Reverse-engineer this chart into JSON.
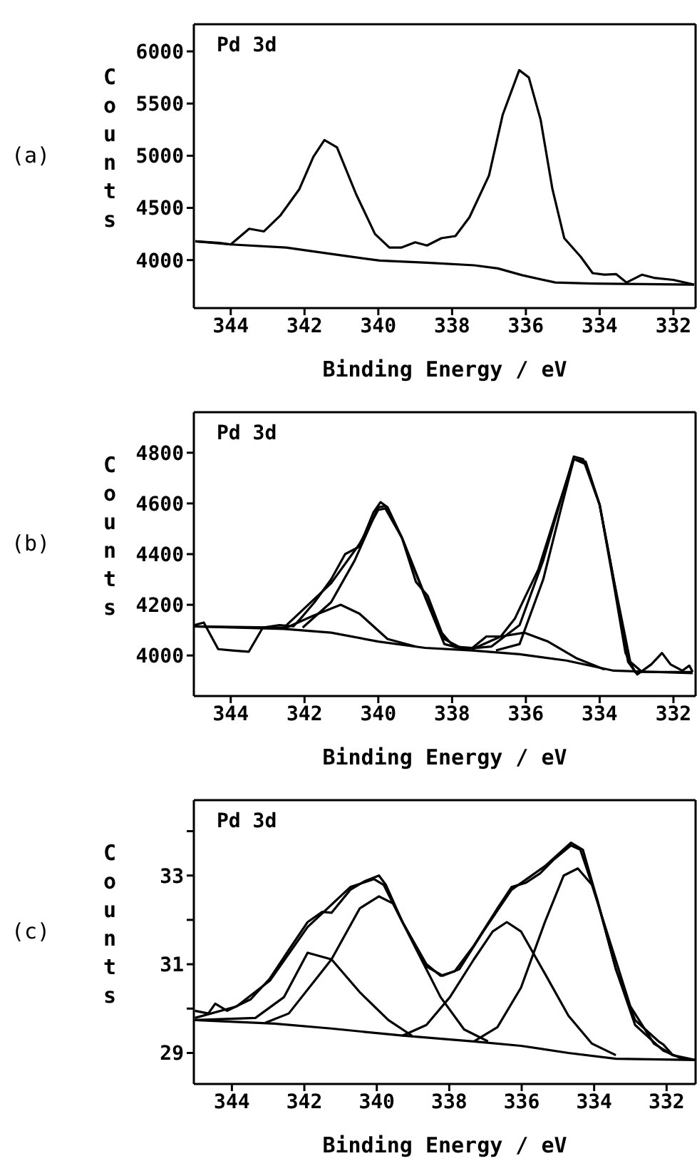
{
  "chart_data": [
    {
      "type": "line",
      "annotations": [
        "(a)",
        "Pd 3d"
      ],
      "xlabel": "Binding Energy / eV",
      "ylabel": "Counts",
      "xlim": [
        345,
        331.4
      ],
      "ylim": [
        3540,
        6260
      ],
      "xticks": [
        344,
        342,
        340,
        338,
        336,
        334,
        332
      ],
      "yticks": [
        4000,
        4500,
        5000,
        5500,
        6000
      ],
      "series": [
        {
          "color": "#000000",
          "x": [
            344.96,
            344.3,
            344.0,
            343.5,
            343.1,
            342.65,
            342.14,
            341.76,
            341.46,
            341.12,
            340.6,
            340.09,
            339.7,
            339.38,
            339.0,
            338.68,
            338.29,
            337.91,
            337.53,
            337.0,
            336.63,
            336.18,
            335.92,
            335.6,
            335.28,
            334.96,
            334.51,
            334.19,
            333.87,
            333.55,
            333.27,
            332.85,
            332.53,
            332.0,
            331.44
          ],
          "values": [
            4180,
            4165,
            4150,
            4300,
            4275,
            4430,
            4680,
            4990,
            5150,
            5080,
            4630,
            4250,
            4120,
            4120,
            4170,
            4140,
            4210,
            4230,
            4410,
            4810,
            5390,
            5820,
            5750,
            5345,
            4680,
            4210,
            4030,
            3875,
            3860,
            3865,
            3785,
            3860,
            3830,
            3810,
            3765
          ]
        },
        {
          "color": "#000000",
          "x": [
            344.96,
            344.0,
            342.5,
            341.2,
            339.96,
            338.68,
            337.4,
            336.76,
            336.1,
            335.2,
            334.2,
            331.44
          ],
          "values": [
            4180,
            4150,
            4120,
            4055,
            3995,
            3975,
            3950,
            3920,
            3855,
            3785,
            3775,
            3765
          ]
        }
      ]
    },
    {
      "type": "line",
      "annotations": [
        "(b)",
        "Pd 3d"
      ],
      "xlabel": "Binding Energy / eV",
      "ylabel": "Counts",
      "xlim": [
        345,
        331.4
      ],
      "ylim": [
        3840,
        4960
      ],
      "xticks": [
        344,
        342,
        340,
        338,
        336,
        334,
        332
      ],
      "yticks": [
        4000,
        4200,
        4400,
        4600,
        4800
      ],
      "series": [
        {
          "color": "#000000",
          "x": [
            344.98,
            344.73,
            344.34,
            343.96,
            343.51,
            343.13,
            342.68,
            342.3,
            342.05,
            341.73,
            341.28,
            340.9,
            340.51,
            340.13,
            339.94,
            339.75,
            339.36,
            338.98,
            338.66,
            338.28,
            337.96,
            337.45,
            337.07,
            336.68,
            336.3,
            336.04,
            335.66,
            335.15,
            334.7,
            334.38,
            334.0,
            333.62,
            333.23,
            332.98,
            332.6,
            332.31,
            332.08,
            331.76,
            331.57,
            331.48
          ],
          "values": [
            4120,
            4130,
            4025,
            4020,
            4015,
            4110,
            4120,
            4115,
            4155,
            4210,
            4300,
            4400,
            4430,
            4565,
            4605,
            4585,
            4465,
            4290,
            4235,
            4090,
            4035,
            4030,
            4075,
            4075,
            4145,
            4225,
            4340,
            4575,
            4775,
            4755,
            4595,
            4300,
            3975,
            3925,
            3965,
            4010,
            3965,
            3940,
            3960,
            3935
          ]
        },
        {
          "color": "#000000",
          "x": [
            344.98,
            342.56,
            341.28,
            340.51,
            340.0,
            339.81,
            339.36,
            338.73,
            338.21,
            337.7,
            336.94,
            336.17,
            335.53,
            335.02,
            334.7,
            334.45,
            334.0,
            333.62,
            333.3,
            333.04,
            331.48
          ],
          "values": [
            4115,
            4110,
            4285,
            4440,
            4575,
            4580,
            4465,
            4235,
            4065,
            4025,
            4035,
            4120,
            4375,
            4630,
            4785,
            4775,
            4595,
            4285,
            4010,
            3935,
            3935
          ]
        },
        {
          "color": "#000000",
          "x": [
            344.98,
            342.56,
            341.28,
            340.0,
            338.73,
            337.45,
            336.17,
            334.9,
            333.62,
            331.48
          ],
          "values": [
            4115,
            4105,
            4090,
            4055,
            4030,
            4020,
            4005,
            3980,
            3940,
            3930
          ]
        },
        {
          "color": "#000000",
          "x": [
            342.56,
            341.79,
            341.02,
            340.51,
            339.75,
            338.98
          ],
          "values": [
            4105,
            4155,
            4200,
            4165,
            4065,
            4035
          ]
        },
        {
          "color": "#000000",
          "x": [
            342.05,
            341.28,
            340.64,
            340.0,
            339.81,
            339.36,
            338.73,
            338.21,
            337.7
          ],
          "values": [
            4110,
            4210,
            4375,
            4585,
            4590,
            4465,
            4230,
            4045,
            4025
          ]
        },
        {
          "color": "#000000",
          "x": [
            337.45,
            336.68,
            336.04,
            335.4,
            334.64,
            333.87
          ],
          "values": [
            4025,
            4075,
            4090,
            4055,
            3990,
            3945
          ]
        },
        {
          "color": "#000000",
          "x": [
            336.81,
            336.17,
            335.53,
            335.02,
            334.7,
            334.38,
            334.0,
            333.62,
            333.17,
            332.85
          ],
          "values": [
            4020,
            4045,
            4300,
            4595,
            4775,
            4765,
            4595,
            4300,
            3975,
            3935
          ]
        }
      ]
    },
    {
      "type": "line",
      "annotations": [
        "(c)",
        "Pd 3d"
      ],
      "xlabel": "Binding Energy / eV",
      "ylabel": "Counts",
      "xlim": [
        345.05,
        331.2
      ],
      "ylim": [
        28.3,
        34.7
      ],
      "xticks": [
        344,
        342,
        340,
        338,
        336,
        334,
        332
      ],
      "yticks": [
        29,
        {
          "value": 30,
          "label": null
        },
        31,
        {
          "value": 32,
          "label": null
        },
        33,
        {
          "value": 34,
          "label": null
        }
      ],
      "series": [
        {
          "color": "#000000",
          "x": [
            345.02,
            344.65,
            344.46,
            344.13,
            343.48,
            342.95,
            342.43,
            341.91,
            341.51,
            341.25,
            340.73,
            340.34,
            339.94,
            339.75,
            339.29,
            338.63,
            338.24,
            337.85,
            337.32,
            336.67,
            336.28,
            335.88,
            335.49,
            335.1,
            334.64,
            334.38,
            333.92,
            333.4,
            332.87,
            332.22,
            332.09,
            331.83,
            331.21
          ],
          "values": [
            29.95,
            29.89,
            30.11,
            29.95,
            30.21,
            30.68,
            31.32,
            31.95,
            32.18,
            32.16,
            32.68,
            32.87,
            33.0,
            32.79,
            31.95,
            31.0,
            30.74,
            30.84,
            31.42,
            32.26,
            32.74,
            32.84,
            33.05,
            33.37,
            33.68,
            33.58,
            32.47,
            30.89,
            29.74,
            29.26,
            29.19,
            28.95,
            28.84
          ]
        },
        {
          "color": "#000000",
          "x": [
            345.02,
            343.87,
            342.95,
            341.91,
            340.73,
            340.08,
            339.81,
            339.29,
            338.63,
            338.18,
            337.72,
            337.06,
            336.28,
            335.36,
            334.64,
            334.31,
            333.92,
            333.4,
            332.87,
            332.09,
            331.57,
            331.21
          ],
          "values": [
            29.79,
            30.05,
            30.63,
            31.84,
            32.74,
            32.92,
            32.79,
            31.95,
            30.95,
            30.74,
            30.89,
            31.74,
            32.68,
            33.21,
            33.74,
            33.58,
            32.47,
            30.89,
            29.63,
            29.05,
            28.87,
            28.84
          ]
        },
        {
          "color": "#000000",
          "x": [
            345.02,
            342.82,
            341.25,
            339.29,
            337.32,
            336.02,
            334.71,
            333.4,
            331.21
          ],
          "values": [
            29.74,
            29.66,
            29.55,
            29.39,
            29.26,
            29.16,
            29.0,
            28.87,
            28.84
          ]
        },
        {
          "color": "#000000",
          "x": [
            345.02,
            343.35,
            342.56,
            341.91,
            341.25,
            340.47,
            339.68,
            339.03
          ],
          "values": [
            29.74,
            29.79,
            30.26,
            31.26,
            31.11,
            30.37,
            29.74,
            29.39
          ]
        },
        {
          "color": "#000000",
          "x": [
            343.08,
            342.43,
            341.25,
            340.47,
            339.94,
            339.55,
            338.9,
            338.24,
            337.59,
            336.93
          ],
          "values": [
            29.68,
            29.89,
            31.11,
            32.26,
            32.53,
            32.37,
            31.32,
            30.26,
            29.53,
            29.26
          ]
        },
        {
          "color": "#000000",
          "x": [
            339.29,
            338.63,
            337.98,
            337.32,
            336.8,
            336.41,
            336.02,
            335.36,
            334.71,
            334.06,
            333.4
          ],
          "values": [
            29.39,
            29.63,
            30.26,
            31.11,
            31.74,
            31.95,
            31.74,
            30.79,
            29.84,
            29.21,
            28.95
          ]
        },
        {
          "color": "#000000",
          "x": [
            337.32,
            336.67,
            336.02,
            335.36,
            334.84,
            334.45,
            334.06,
            333.53,
            333.0,
            332.35,
            331.83
          ],
          "values": [
            29.26,
            29.58,
            30.47,
            31.95,
            33.0,
            33.16,
            32.79,
            31.42,
            30.05,
            29.21,
            28.95
          ]
        }
      ]
    }
  ]
}
